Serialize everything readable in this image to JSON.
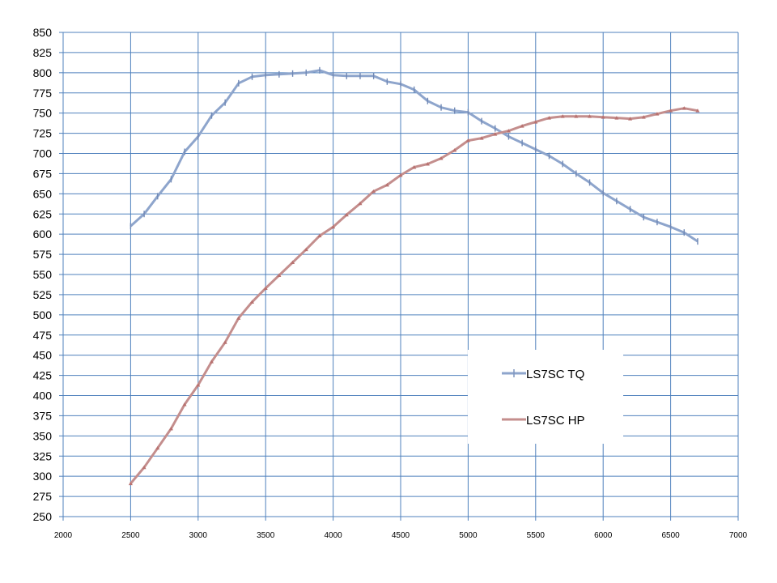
{
  "chart_data": {
    "type": "line",
    "xlim": [
      2000,
      7000
    ],
    "ylim": [
      250,
      850
    ],
    "x_ticks": [
      "2000",
      "2500",
      "3000",
      "3500",
      "4000",
      "4500",
      "5000",
      "5500",
      "6000",
      "6500",
      "7000"
    ],
    "y_ticks": [
      "250",
      "275",
      "300",
      "325",
      "350",
      "375",
      "400",
      "425",
      "450",
      "475",
      "500",
      "525",
      "550",
      "575",
      "600",
      "625",
      "650",
      "675",
      "700",
      "725",
      "750",
      "775",
      "800",
      "825",
      "850"
    ],
    "grid": {
      "horizontal": true,
      "vertical": true
    },
    "legend": {
      "placement": "center-right"
    },
    "series": [
      {
        "name": "LS7SC TQ",
        "color": "#8EA5CC",
        "marker": "plus",
        "x": [
          2500,
          2600,
          2700,
          2800,
          2900,
          3000,
          3100,
          3200,
          3300,
          3400,
          3500,
          3600,
          3700,
          3800,
          3900,
          4000,
          4100,
          4200,
          4300,
          4400,
          4500,
          4600,
          4700,
          4800,
          4900,
          5000,
          5100,
          5200,
          5300,
          5400,
          5500,
          5600,
          5700,
          5800,
          5900,
          6000,
          6100,
          6200,
          6300,
          6400,
          6500,
          6600,
          6700
        ],
        "y": [
          610,
          625,
          647,
          668,
          702,
          721,
          747,
          763,
          787,
          795,
          797,
          798,
          799,
          800,
          803,
          797,
          796,
          796,
          796,
          789,
          786,
          779,
          765,
          757,
          753,
          751,
          740,
          731,
          721,
          713,
          705,
          697,
          687,
          675,
          664,
          651,
          641,
          631,
          621,
          615,
          609,
          602,
          591
        ]
      },
      {
        "name": "LS7SC HP",
        "color": "#C48E8D",
        "marker": "triangle",
        "x": [
          2500,
          2600,
          2700,
          2800,
          2900,
          3000,
          3100,
          3200,
          3300,
          3400,
          3500,
          3600,
          3700,
          3800,
          3900,
          4000,
          4100,
          4200,
          4300,
          4400,
          4500,
          4600,
          4700,
          4800,
          4900,
          5000,
          5100,
          5200,
          5300,
          5400,
          5500,
          5600,
          5700,
          5800,
          5900,
          6000,
          6100,
          6200,
          6300,
          6400,
          6500,
          6600,
          6700
        ],
        "y": [
          291,
          311,
          335,
          359,
          389,
          413,
          442,
          466,
          496,
          516,
          533,
          549,
          565,
          581,
          598,
          609,
          624,
          638,
          653,
          661,
          673,
          683,
          687,
          694,
          704,
          716,
          719,
          724,
          728,
          734,
          739,
          744,
          746,
          746,
          746,
          745,
          744,
          743,
          745,
          749,
          753,
          756,
          753
        ]
      }
    ]
  }
}
